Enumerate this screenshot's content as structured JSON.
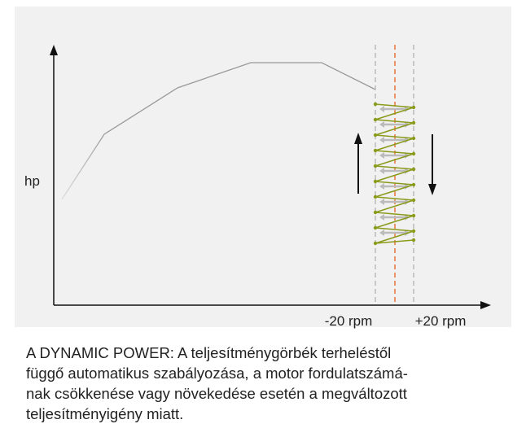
{
  "diagram": {
    "y_label": "hp",
    "x_labels": [
      "-20 rpm",
      "+20 rpm"
    ]
  },
  "caption": {
    "lines": [
      "A DYNAMIC POWER: A teljesítménygörbék terheléstől",
      "függő automatikus szabályozása, a motor fordulatszámá-",
      "nak csökkenése vagy növekedése esetén a megváltozott",
      "teljesítményigény miatt."
    ]
  }
}
